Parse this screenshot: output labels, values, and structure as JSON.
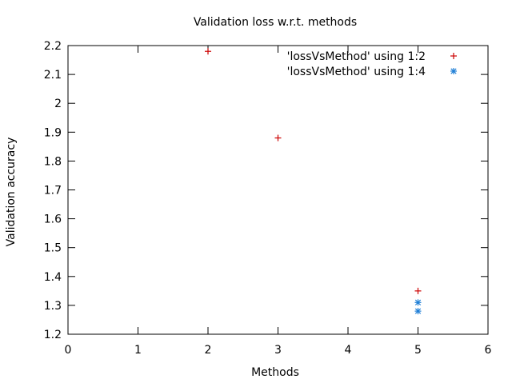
{
  "chart_data": {
    "type": "scatter",
    "title": "Validation loss w.r.t. methods",
    "xlabel": "Methods",
    "ylabel": "Validation accuracy",
    "xlim": [
      0,
      6
    ],
    "ylim": [
      1.2,
      2.2
    ],
    "x_ticks": [
      0,
      1,
      2,
      3,
      4,
      5,
      6
    ],
    "y_ticks": [
      1.2,
      1.3,
      1.4,
      1.5,
      1.6,
      1.7,
      1.8,
      1.9,
      2.0,
      2.1,
      2.2
    ],
    "x_tick_labels": [
      "0",
      "1",
      "2",
      "3",
      "4",
      "5",
      "6"
    ],
    "y_tick_labels": [
      "1.2",
      "1.3",
      "1.4",
      "1.5",
      "1.6",
      "1.7",
      "1.8",
      "1.9",
      "2",
      "2.1",
      "2.2"
    ],
    "grid": false,
    "legend_position": "top-right",
    "series": [
      {
        "name": "'lossVsMethod' using 1:2",
        "color": "#cc0000",
        "marker": "plus",
        "points": [
          {
            "x": 2,
            "y": 2.18
          },
          {
            "x": 3,
            "y": 1.88
          },
          {
            "x": 5,
            "y": 1.35
          }
        ]
      },
      {
        "name": "'lossVsMethod' using 1:4",
        "color": "#1f7fd6",
        "marker": "star",
        "points": [
          {
            "x": 5,
            "y": 1.31
          },
          {
            "x": 5,
            "y": 1.28
          }
        ]
      }
    ]
  }
}
